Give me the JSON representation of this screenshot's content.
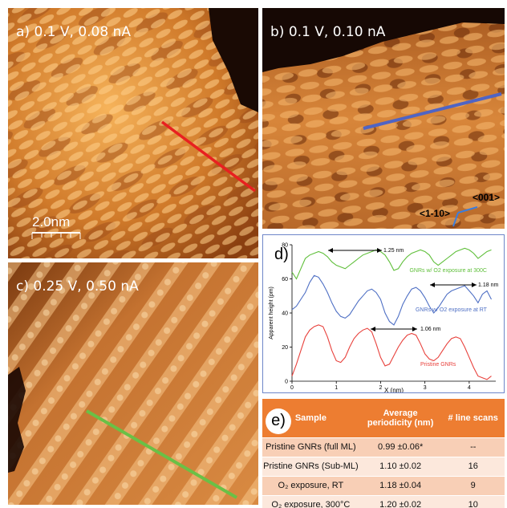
{
  "panels": {
    "a": {
      "label": "a) 0.1 V, 0.08 nA",
      "scale_bar": "2.0nm"
    },
    "b": {
      "label": "b) 0.1 V, 0.10 nA",
      "dir1": "<001>",
      "dir2": "<1-10>"
    },
    "c": {
      "label": "c) 0.25 V, 0.50 nA"
    },
    "d": {
      "label": "d)"
    },
    "e": {
      "label": "e)"
    }
  },
  "chart_data": {
    "type": "line",
    "xlabel": "X (nm)",
    "ylabel": "Apparent height (pm)",
    "xlim": [
      0,
      4.6
    ],
    "ylim": [
      0,
      80
    ],
    "xticks": [
      "0",
      "1",
      "2",
      "3",
      "4"
    ],
    "yticks": [
      "0",
      "20",
      "40",
      "60",
      "80"
    ],
    "series": [
      {
        "name": "GNRs w/ O2 exposure at 300C",
        "color": "#5fbf3a",
        "x": [
          0,
          0.1,
          0.2,
          0.3,
          0.4,
          0.5,
          0.6,
          0.7,
          0.8,
          0.9,
          1.0,
          1.1,
          1.2,
          1.3,
          1.4,
          1.5,
          1.6,
          1.7,
          1.8,
          1.9,
          2.0,
          2.1,
          2.2,
          2.3,
          2.4,
          2.5,
          2.6,
          2.7,
          2.8,
          2.9,
          3.0,
          3.1,
          3.2,
          3.3,
          3.4,
          3.5,
          3.6,
          3.7,
          3.8,
          3.9,
          4.0,
          4.1,
          4.2,
          4.3,
          4.4,
          4.5
        ],
        "y": [
          64,
          60,
          66,
          72,
          74,
          75,
          76,
          75,
          73,
          70,
          68,
          67,
          66,
          68,
          70,
          72,
          74,
          75,
          76,
          77,
          76,
          74,
          70,
          65,
          66,
          70,
          73,
          75,
          76,
          77,
          76,
          74,
          70,
          68,
          70,
          72,
          74,
          76,
          77,
          78,
          77,
          75,
          72,
          74,
          76,
          77
        ]
      },
      {
        "name": "GNRs w/ O2 exposure at RT",
        "color": "#4e6fc4",
        "x": [
          0,
          0.1,
          0.2,
          0.3,
          0.4,
          0.5,
          0.6,
          0.7,
          0.8,
          0.9,
          1.0,
          1.1,
          1.2,
          1.3,
          1.4,
          1.5,
          1.6,
          1.7,
          1.8,
          1.9,
          2.0,
          2.1,
          2.2,
          2.3,
          2.4,
          2.5,
          2.6,
          2.7,
          2.8,
          2.9,
          3.0,
          3.1,
          3.2,
          3.3,
          3.4,
          3.5,
          3.6,
          3.7,
          3.8,
          3.9,
          4.0,
          4.1,
          4.2,
          4.3,
          4.4,
          4.5
        ],
        "y": [
          42,
          44,
          48,
          52,
          58,
          62,
          61,
          57,
          52,
          46,
          41,
          38,
          37,
          39,
          43,
          47,
          50,
          53,
          54,
          52,
          48,
          40,
          35,
          33,
          38,
          45,
          50,
          54,
          55,
          53,
          49,
          44,
          40,
          43,
          47,
          51,
          53,
          54,
          55,
          56,
          53,
          50,
          46,
          51,
          53,
          48
        ]
      },
      {
        "name": "Pristine GNRs",
        "color": "#e8413c",
        "x": [
          0,
          0.1,
          0.2,
          0.3,
          0.4,
          0.5,
          0.6,
          0.7,
          0.8,
          0.9,
          1.0,
          1.1,
          1.2,
          1.3,
          1.4,
          1.5,
          1.6,
          1.7,
          1.8,
          1.9,
          2.0,
          2.1,
          2.2,
          2.3,
          2.4,
          2.5,
          2.6,
          2.7,
          2.8,
          2.9,
          3.0,
          3.1,
          3.2,
          3.3,
          3.4,
          3.5,
          3.6,
          3.7,
          3.8,
          3.9,
          4.0,
          4.1,
          4.2,
          4.3,
          4.4,
          4.5
        ],
        "y": [
          3,
          10,
          18,
          26,
          30,
          32,
          33,
          32,
          26,
          18,
          12,
          11,
          14,
          20,
          25,
          28,
          30,
          31,
          29,
          22,
          14,
          9,
          10,
          15,
          20,
          24,
          27,
          28,
          27,
          22,
          16,
          13,
          12,
          14,
          18,
          22,
          25,
          26,
          25,
          20,
          14,
          8,
          3,
          2,
          1,
          3
        ]
      }
    ],
    "annotations": [
      "1.25 nm",
      "1.18 nm",
      "1.06 nm"
    ]
  },
  "table": {
    "headers": [
      "Sample",
      "Average periodicity (nm)",
      "# line scans"
    ],
    "rows": [
      [
        "Pristine GNRs (full ML)",
        "0.99 ±0.06*",
        "--"
      ],
      [
        "Pristine GNRs (Sub-ML)",
        "1.10 ±0.02",
        "16"
      ],
      [
        "O₂ exposure, RT",
        "1.18 ±0.04",
        "9"
      ],
      [
        "O₂ exposure, 300°C",
        "1.20 ±0.02",
        "10"
      ]
    ]
  }
}
